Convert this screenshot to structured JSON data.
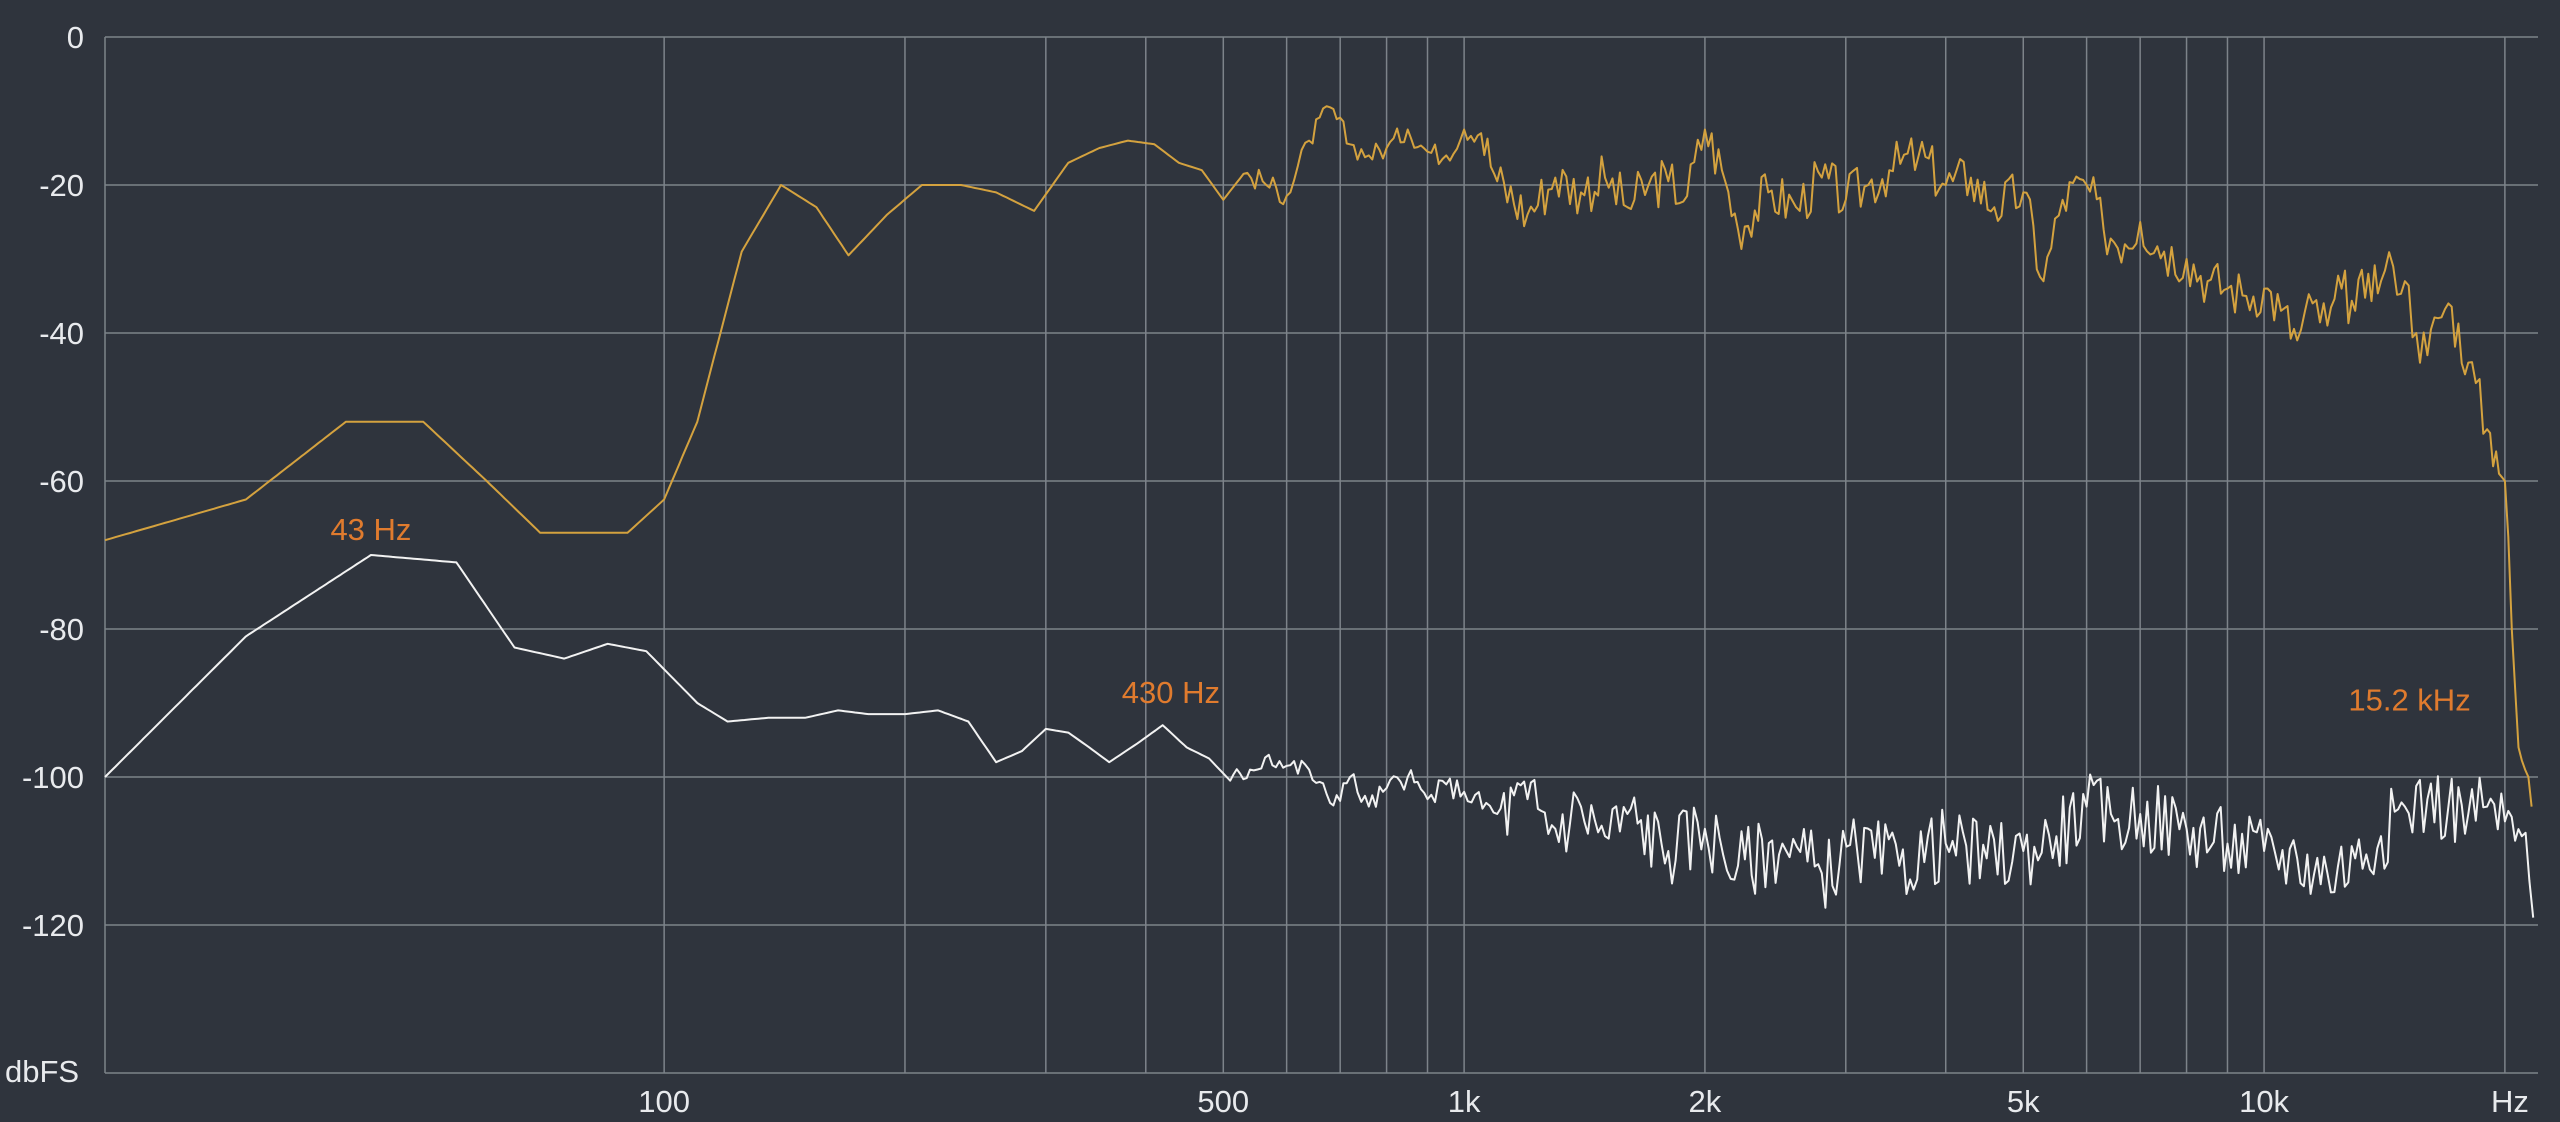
{
  "chart_data": {
    "type": "line",
    "title": "",
    "xscale": "log",
    "xlim": [
      20,
      22000
    ],
    "ylim": [
      -140,
      0
    ],
    "grid": true,
    "ylabel": "dbFS",
    "xlabel": "Hz",
    "x_ticks": [
      {
        "label": "100",
        "value": 100
      },
      {
        "label": "500",
        "value": 500
      },
      {
        "label": "1k",
        "value": 1000
      },
      {
        "label": "2k",
        "value": 2000
      },
      {
        "label": "5k",
        "value": 5000
      },
      {
        "label": "10k",
        "value": 10000
      }
    ],
    "x_minor_gridlines": [
      200,
      300,
      400,
      600,
      700,
      800,
      900,
      3000,
      4000,
      6000,
      7000,
      8000,
      9000,
      20000
    ],
    "y_ticks": [
      {
        "label": "0",
        "value": 0
      },
      {
        "label": "-20",
        "value": -20
      },
      {
        "label": "-40",
        "value": -40
      },
      {
        "label": "-60",
        "value": -60
      },
      {
        "label": "-80",
        "value": -80
      },
      {
        "label": "-100",
        "value": -100
      },
      {
        "label": "-120",
        "value": -120
      }
    ],
    "colors": {
      "background": "#2f343d",
      "grid": "#7d838a",
      "axis_text": "#e8eaed",
      "annotation": "#e07b2e"
    },
    "annotations": [
      {
        "text": "43 Hz",
        "x": 43,
        "y": -68
      },
      {
        "text": "430 Hz",
        "x": 430,
        "y": -90
      },
      {
        "text": "15.2  kHz",
        "x": 15200,
        "y": -91
      }
    ],
    "series": [
      {
        "color": "#d4a23f",
        "points": [
          [
            20,
            -68
          ],
          [
            30,
            -62.5
          ],
          [
            40,
            -52
          ],
          [
            50,
            -52
          ],
          [
            60,
            -60
          ],
          [
            70,
            -67
          ],
          [
            80,
            -67
          ],
          [
            90,
            -67
          ],
          [
            100,
            -62.5
          ],
          [
            110,
            -52
          ],
          [
            125,
            -29
          ],
          [
            140,
            -20
          ],
          [
            155,
            -23
          ],
          [
            170,
            -29.5
          ],
          [
            190,
            -24
          ],
          [
            210,
            -20
          ],
          [
            235,
            -20
          ],
          [
            260,
            -21
          ],
          [
            290,
            -23.5
          ],
          [
            320,
            -17
          ],
          [
            350,
            -15
          ],
          [
            380,
            -14
          ],
          [
            410,
            -14.5
          ],
          [
            440,
            -17
          ],
          [
            470,
            -18
          ],
          [
            500,
            -22
          ],
          [
            530,
            -18.5
          ],
          [
            560,
            -19.5
          ],
          [
            600,
            -21.5
          ],
          [
            640,
            -14
          ],
          [
            680,
            -9.5
          ],
          [
            720,
            -14.5
          ],
          [
            760,
            -16
          ],
          [
            800,
            -15
          ],
          [
            850,
            -12.5
          ],
          [
            900,
            -15.5
          ],
          [
            950,
            -16
          ],
          [
            1000,
            -12.5
          ],
          [
            1050,
            -13
          ],
          [
            1100,
            -19.5
          ],
          [
            1200,
            -24
          ],
          [
            1300,
            -19
          ],
          [
            1400,
            -21
          ],
          [
            1500,
            -19
          ],
          [
            1600,
            -23
          ],
          [
            1700,
            -20
          ],
          [
            1800,
            -19.5
          ],
          [
            1900,
            -21.5
          ],
          [
            2000,
            -12.5
          ],
          [
            2100,
            -18
          ],
          [
            2200,
            -26
          ],
          [
            2400,
            -21
          ],
          [
            2600,
            -23
          ],
          [
            2800,
            -19
          ],
          [
            3000,
            -22
          ],
          [
            3200,
            -20
          ],
          [
            3400,
            -18
          ],
          [
            3700,
            -16
          ],
          [
            4000,
            -20
          ],
          [
            4300,
            -19
          ],
          [
            4600,
            -23
          ],
          [
            5000,
            -21
          ],
          [
            5300,
            -33
          ],
          [
            5600,
            -22
          ],
          [
            6000,
            -20
          ],
          [
            6300,
            -26
          ],
          [
            6700,
            -28
          ],
          [
            7000,
            -25
          ],
          [
            7500,
            -29
          ],
          [
            8000,
            -30
          ],
          [
            8500,
            -33
          ],
          [
            9000,
            -34
          ],
          [
            9500,
            -35
          ],
          [
            10000,
            -34
          ],
          [
            10500,
            -37
          ],
          [
            11000,
            -41
          ],
          [
            11500,
            -36
          ],
          [
            12000,
            -39
          ],
          [
            12500,
            -34
          ],
          [
            13000,
            -37
          ],
          [
            13500,
            -32
          ],
          [
            14000,
            -33
          ],
          [
            14500,
            -31
          ],
          [
            15000,
            -33
          ],
          [
            15500,
            -40
          ],
          [
            16000,
            -43
          ],
          [
            16500,
            -38
          ],
          [
            17000,
            -36
          ],
          [
            18000,
            -44
          ],
          [
            19000,
            -53
          ],
          [
            19500,
            -56
          ],
          [
            20000,
            -60
          ],
          [
            20400,
            -80
          ],
          [
            20800,
            -96
          ],
          [
            21200,
            -99
          ],
          [
            21600,
            -104
          ]
        ]
      },
      {
        "color": "#f2f2f2",
        "points": [
          [
            20,
            -100
          ],
          [
            30,
            -81
          ],
          [
            43,
            -70
          ],
          [
            55,
            -71
          ],
          [
            65,
            -82.5
          ],
          [
            75,
            -84
          ],
          [
            85,
            -82
          ],
          [
            95,
            -83
          ],
          [
            110,
            -90
          ],
          [
            120,
            -92.5
          ],
          [
            135,
            -92
          ],
          [
            150,
            -92
          ],
          [
            165,
            -91
          ],
          [
            180,
            -91.5
          ],
          [
            200,
            -91.5
          ],
          [
            220,
            -91
          ],
          [
            240,
            -92.5
          ],
          [
            260,
            -98
          ],
          [
            280,
            -96.5
          ],
          [
            300,
            -93.5
          ],
          [
            320,
            -94
          ],
          [
            340,
            -96
          ],
          [
            360,
            -98
          ],
          [
            390,
            -95.5
          ],
          [
            420,
            -93
          ],
          [
            450,
            -96
          ],
          [
            480,
            -97.5
          ],
          [
            510,
            -100.5
          ],
          [
            540,
            -99
          ],
          [
            570,
            -97
          ],
          [
            600,
            -98.5
          ],
          [
            640,
            -99
          ],
          [
            680,
            -103.5
          ],
          [
            720,
            -100
          ],
          [
            760,
            -104
          ],
          [
            800,
            -101.5
          ],
          [
            850,
            -100
          ],
          [
            900,
            -103
          ],
          [
            950,
            -101
          ],
          [
            1000,
            -102
          ],
          [
            1100,
            -105
          ],
          [
            1200,
            -103
          ],
          [
            1300,
            -107
          ],
          [
            1400,
            -104
          ],
          [
            1500,
            -108
          ],
          [
            1600,
            -105
          ],
          [
            1800,
            -110
          ],
          [
            2000,
            -107
          ],
          [
            2200,
            -112
          ],
          [
            2500,
            -109
          ],
          [
            2800,
            -113
          ],
          [
            3100,
            -110
          ],
          [
            3500,
            -112
          ],
          [
            4000,
            -109
          ],
          [
            4500,
            -111
          ],
          [
            5000,
            -110
          ],
          [
            5500,
            -108
          ],
          [
            6000,
            -104
          ],
          [
            6500,
            -106
          ],
          [
            7000,
            -105
          ],
          [
            8000,
            -107
          ],
          [
            9000,
            -109
          ],
          [
            10000,
            -110
          ],
          [
            11000,
            -111
          ],
          [
            12000,
            -113
          ],
          [
            13000,
            -111
          ],
          [
            14000,
            -108
          ],
          [
            15000,
            -104
          ],
          [
            16000,
            -103
          ],
          [
            17000,
            -104
          ],
          [
            18000,
            -105
          ],
          [
            19000,
            -104
          ],
          [
            20000,
            -106
          ],
          [
            21000,
            -108
          ],
          [
            21700,
            -119
          ]
        ]
      }
    ]
  }
}
